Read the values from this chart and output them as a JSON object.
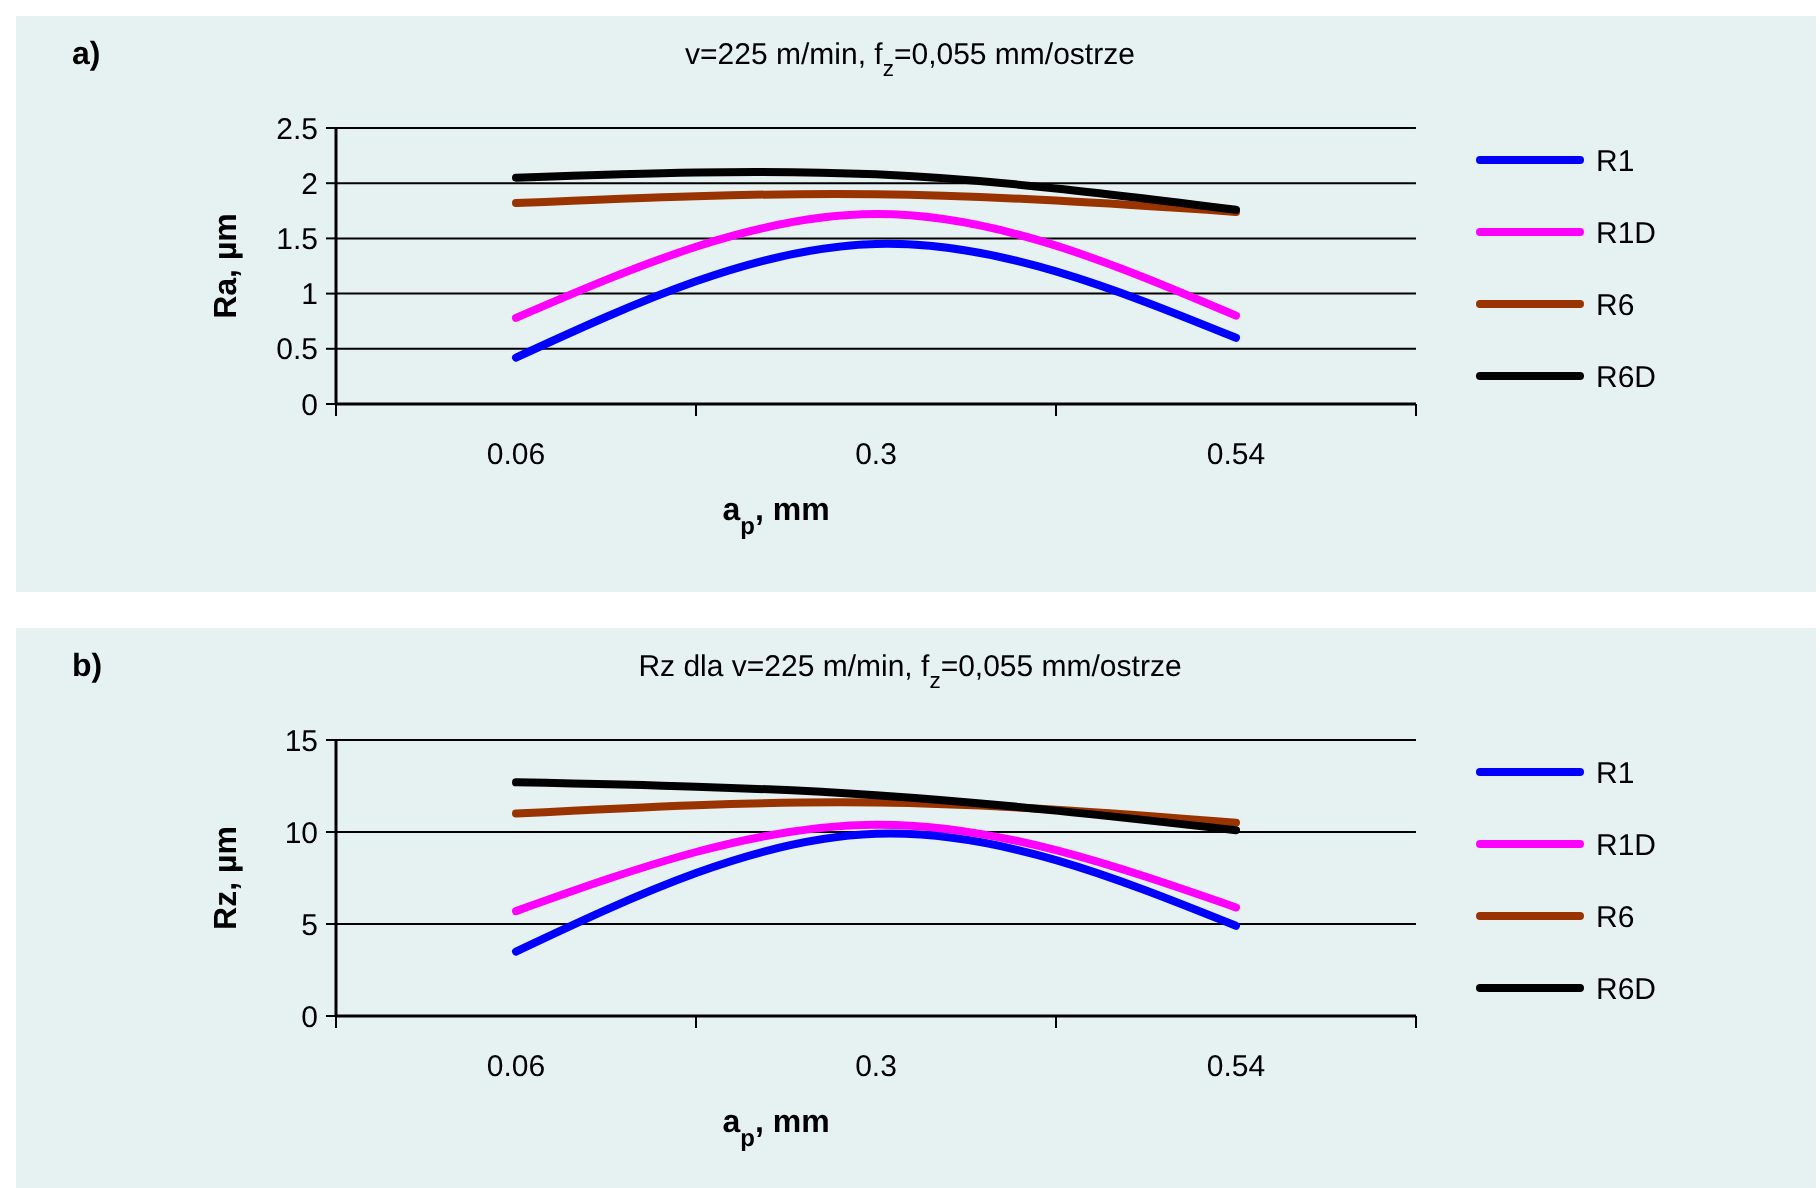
{
  "chart_data": [
    {
      "type": "line",
      "title": "v=225 m/min, f$_{z}$=0,055 mm/ostrze",
      "annotations": [
        "a)"
      ],
      "xlabel": "a$_{p}$, mm",
      "ylabel": "Ra, µm",
      "categories": [
        "0.06",
        "0.3",
        "0.54"
      ],
      "ylim": [
        0,
        2.5
      ],
      "yticks": [
        0,
        0.5,
        1,
        1.5,
        2,
        2.5
      ],
      "grid": "y",
      "legend": "right",
      "line_style": "solid",
      "series": [
        {
          "name": "R1",
          "color": "#0000ff",
          "values": [
            0.42,
            1.45,
            0.6
          ]
        },
        {
          "name": "R1D",
          "color": "#ff00ff",
          "values": [
            0.78,
            1.72,
            0.8
          ]
        },
        {
          "name": "R6",
          "color": "#993300",
          "values": [
            1.82,
            1.9,
            1.74
          ]
        },
        {
          "name": "R6D",
          "color": "#000000",
          "values": [
            2.05,
            2.08,
            1.76
          ]
        }
      ]
    },
    {
      "type": "line",
      "title": "Rz dla v=225 m/min, f$_{z}$=0,055 mm/ostrze",
      "annotations": [
        "b)"
      ],
      "xlabel": "a$_{p}$, mm",
      "ylabel": "Rz, µm",
      "categories": [
        "0.06",
        "0.3",
        "0.54"
      ],
      "ylim": [
        0,
        15
      ],
      "yticks": [
        0,
        5,
        10,
        15
      ],
      "grid": "y",
      "legend": "right",
      "line_style": "solid",
      "series": [
        {
          "name": "R1",
          "color": "#0000ff",
          "values": [
            3.5,
            9.9,
            4.9
          ]
        },
        {
          "name": "R1D",
          "color": "#ff00ff",
          "values": [
            5.7,
            10.4,
            5.9
          ]
        },
        {
          "name": "R6",
          "color": "#993300",
          "values": [
            11.0,
            11.6,
            10.5
          ]
        },
        {
          "name": "R6D",
          "color": "#000000",
          "values": [
            12.7,
            12.0,
            10.1
          ]
        }
      ]
    }
  ]
}
